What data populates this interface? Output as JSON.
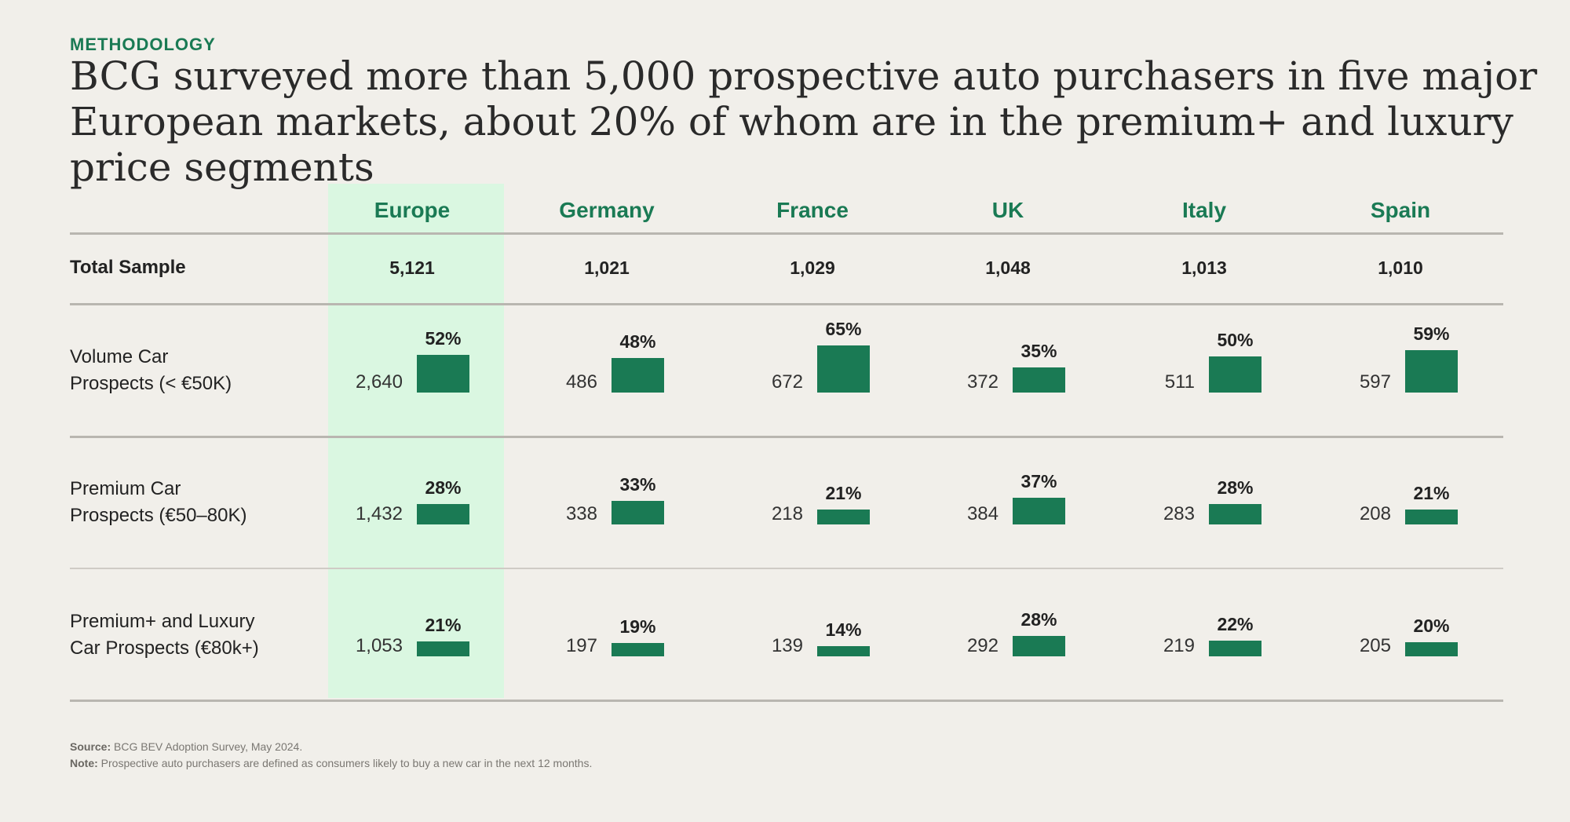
{
  "eyebrow": "METHODOLOGY",
  "title": "BCG surveyed more than 5,000 prospective auto purchasers in five major European markets, about 20% of whom are in the premium+ and luxury price segments",
  "chart_data": {
    "type": "table",
    "columns": [
      "Europe",
      "Germany",
      "France",
      "UK",
      "Italy",
      "Spain"
    ],
    "highlighted_column": "Europe",
    "total_label": "Total Sample",
    "totals": [
      "5,121",
      "1,021",
      "1,029",
      "1,048",
      "1,013",
      "1,010"
    ],
    "rows": [
      {
        "label_line1": "Volume Car",
        "label_line2": "Prospects (< €50K)",
        "counts": [
          "2,640",
          "486",
          "672",
          "372",
          "511",
          "597"
        ],
        "pct_labels": [
          "52%",
          "48%",
          "65%",
          "35%",
          "50%",
          "59%"
        ],
        "pct_values": [
          52,
          48,
          65,
          35,
          50,
          59
        ]
      },
      {
        "label_line1": "Premium Car",
        "label_line2": "Prospects (€50–80K)",
        "counts": [
          "1,432",
          "338",
          "218",
          "384",
          "283",
          "208"
        ],
        "pct_labels": [
          "28%",
          "33%",
          "21%",
          "37%",
          "28%",
          "21%"
        ],
        "pct_values": [
          28,
          33,
          21,
          37,
          28,
          21
        ]
      },
      {
        "label_line1": "Premium+ and Luxury",
        "label_line2": "Car Prospects (€80k+)",
        "counts": [
          "1,053",
          "197",
          "139",
          "292",
          "219",
          "205"
        ],
        "pct_labels": [
          "21%",
          "19%",
          "14%",
          "28%",
          "22%",
          "20%"
        ],
        "pct_values": [
          21,
          19,
          14,
          28,
          22,
          20
        ]
      }
    ]
  },
  "footnotes": {
    "source_label": "Source:",
    "source_text": "BCG BEV Adoption Survey, May 2024.",
    "note_label": "Note:",
    "note_text": "Prospective auto purchasers are defined as consumers likely to buy a new car in the next 12 months."
  },
  "colors": {
    "accent": "#1a7a54",
    "highlight": "#daf7e1",
    "background": "#f1efea"
  }
}
